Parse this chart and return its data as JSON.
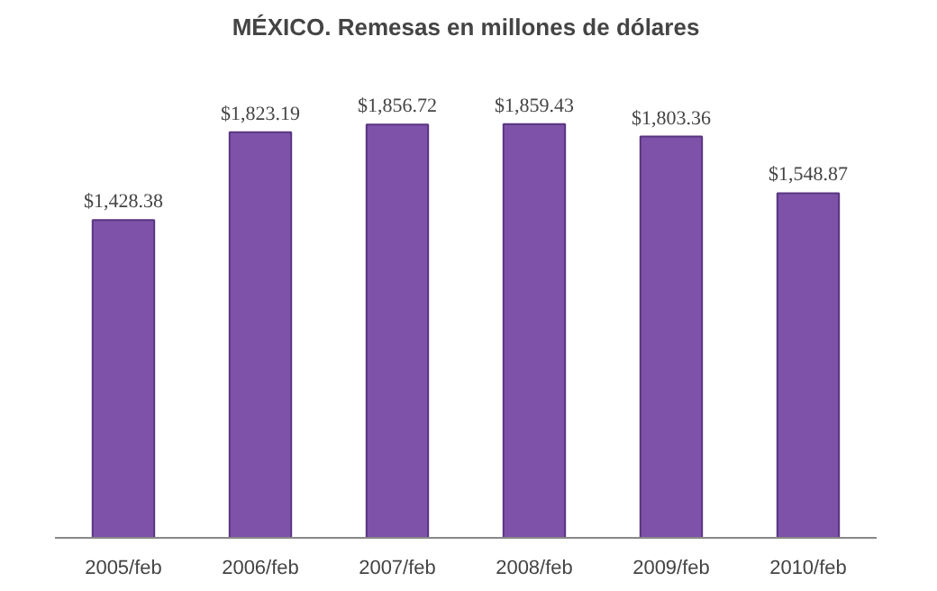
{
  "chart_data": {
    "type": "bar",
    "title": "MÉXICO. Remesas en millones de dólares",
    "categories": [
      "2005/feb",
      "2006/feb",
      "2007/feb",
      "2008/feb",
      "2009/feb",
      "2010/feb"
    ],
    "values": [
      1428.38,
      1823.19,
      1856.72,
      1859.43,
      1803.36,
      1548.87
    ],
    "value_labels": [
      "$1,428.38",
      "$1,823.19",
      "$1,856.72",
      "$1,859.43",
      "$1,803.36",
      "$1,548.87"
    ],
    "color": "#7d52a8",
    "grid": false
  }
}
